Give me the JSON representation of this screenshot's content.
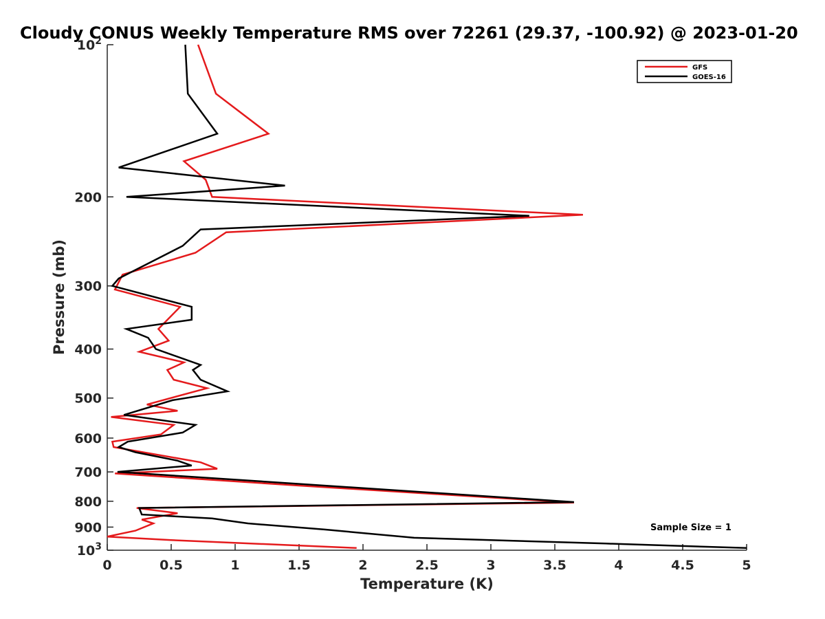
{
  "chart_data": {
    "type": "line",
    "title": "Cloudy CONUS Weekly Temperature RMS over 72261 (29.37, -100.92) @ 2023-01-20",
    "xlabel": "Temperature (K)",
    "ylabel": "Pressure (mb)",
    "xlim": [
      0,
      5
    ],
    "ylim": [
      100,
      1000
    ],
    "y_scale": "log",
    "y_direction": "reversed",
    "x_ticks": [
      "0",
      "0.5",
      "1",
      "1.5",
      "2",
      "2.5",
      "3",
      "3.5",
      "4",
      "4.5",
      "5"
    ],
    "y_ticks": [
      {
        "value": 100,
        "base": "10",
        "exp": "2"
      },
      {
        "value": 200,
        "label": "200"
      },
      {
        "value": 300,
        "label": "300"
      },
      {
        "value": 400,
        "label": "400"
      },
      {
        "value": 500,
        "label": "500"
      },
      {
        "value": 600,
        "label": "600"
      },
      {
        "value": 700,
        "label": "700"
      },
      {
        "value": 800,
        "label": "800"
      },
      {
        "value": 900,
        "label": "900"
      },
      {
        "value": 1000,
        "base": "10",
        "exp": "3"
      }
    ],
    "grid": false,
    "legend_position": "top-right",
    "annotation": "Sample Size = 1",
    "series": [
      {
        "name": "GFS",
        "color": "#e41a1c",
        "points": [
          [
            0.71,
            100
          ],
          [
            0.85,
            125
          ],
          [
            1.26,
            150
          ],
          [
            0.6,
            170
          ],
          [
            0.77,
            185
          ],
          [
            0.82,
            200
          ],
          [
            3.72,
            217
          ],
          [
            0.93,
            235
          ],
          [
            0.69,
            258
          ],
          [
            0.12,
            285
          ],
          [
            0.06,
            305
          ],
          [
            0.57,
            330
          ],
          [
            0.4,
            365
          ],
          [
            0.48,
            385
          ],
          [
            0.25,
            405
          ],
          [
            0.6,
            425
          ],
          [
            0.47,
            440
          ],
          [
            0.52,
            460
          ],
          [
            0.78,
            478
          ],
          [
            0.31,
            515
          ],
          [
            0.55,
            530
          ],
          [
            0.03,
            545
          ],
          [
            0.52,
            565
          ],
          [
            0.42,
            590
          ],
          [
            0.04,
            610
          ],
          [
            0.05,
            625
          ],
          [
            0.73,
            670
          ],
          [
            0.86,
            690
          ],
          [
            0.06,
            705
          ],
          [
            1.5,
            745
          ],
          [
            3.65,
            805
          ],
          [
            0.23,
            825
          ],
          [
            0.55,
            845
          ],
          [
            0.27,
            870
          ],
          [
            0.36,
            885
          ],
          [
            0.22,
            915
          ],
          [
            0.0,
            940
          ],
          [
            0.5,
            955
          ],
          [
            1.95,
            990
          ]
        ]
      },
      {
        "name": "GOES-16",
        "color": "#000000",
        "points": [
          [
            0.61,
            100
          ],
          [
            0.63,
            125
          ],
          [
            0.86,
            150
          ],
          [
            0.09,
            175
          ],
          [
            1.39,
            190
          ],
          [
            0.15,
            200
          ],
          [
            3.3,
            218
          ],
          [
            0.73,
            232
          ],
          [
            0.59,
            250
          ],
          [
            0.09,
            290
          ],
          [
            0.04,
            300
          ],
          [
            0.66,
            330
          ],
          [
            0.66,
            350
          ],
          [
            0.15,
            365
          ],
          [
            0.32,
            380
          ],
          [
            0.38,
            400
          ],
          [
            0.73,
            430
          ],
          [
            0.67,
            440
          ],
          [
            0.73,
            460
          ],
          [
            0.94,
            485
          ],
          [
            0.51,
            505
          ],
          [
            0.13,
            540
          ],
          [
            0.69,
            565
          ],
          [
            0.59,
            585
          ],
          [
            0.16,
            610
          ],
          [
            0.09,
            625
          ],
          [
            0.22,
            640
          ],
          [
            0.55,
            665
          ],
          [
            0.66,
            680
          ],
          [
            0.08,
            700
          ],
          [
            3.65,
            803
          ],
          [
            0.25,
            825
          ],
          [
            0.27,
            850
          ],
          [
            0.82,
            865
          ],
          [
            1.1,
            885
          ],
          [
            1.7,
            910
          ],
          [
            2.4,
            945
          ],
          [
            3.9,
            970
          ],
          [
            5.0,
            990
          ]
        ]
      }
    ]
  }
}
